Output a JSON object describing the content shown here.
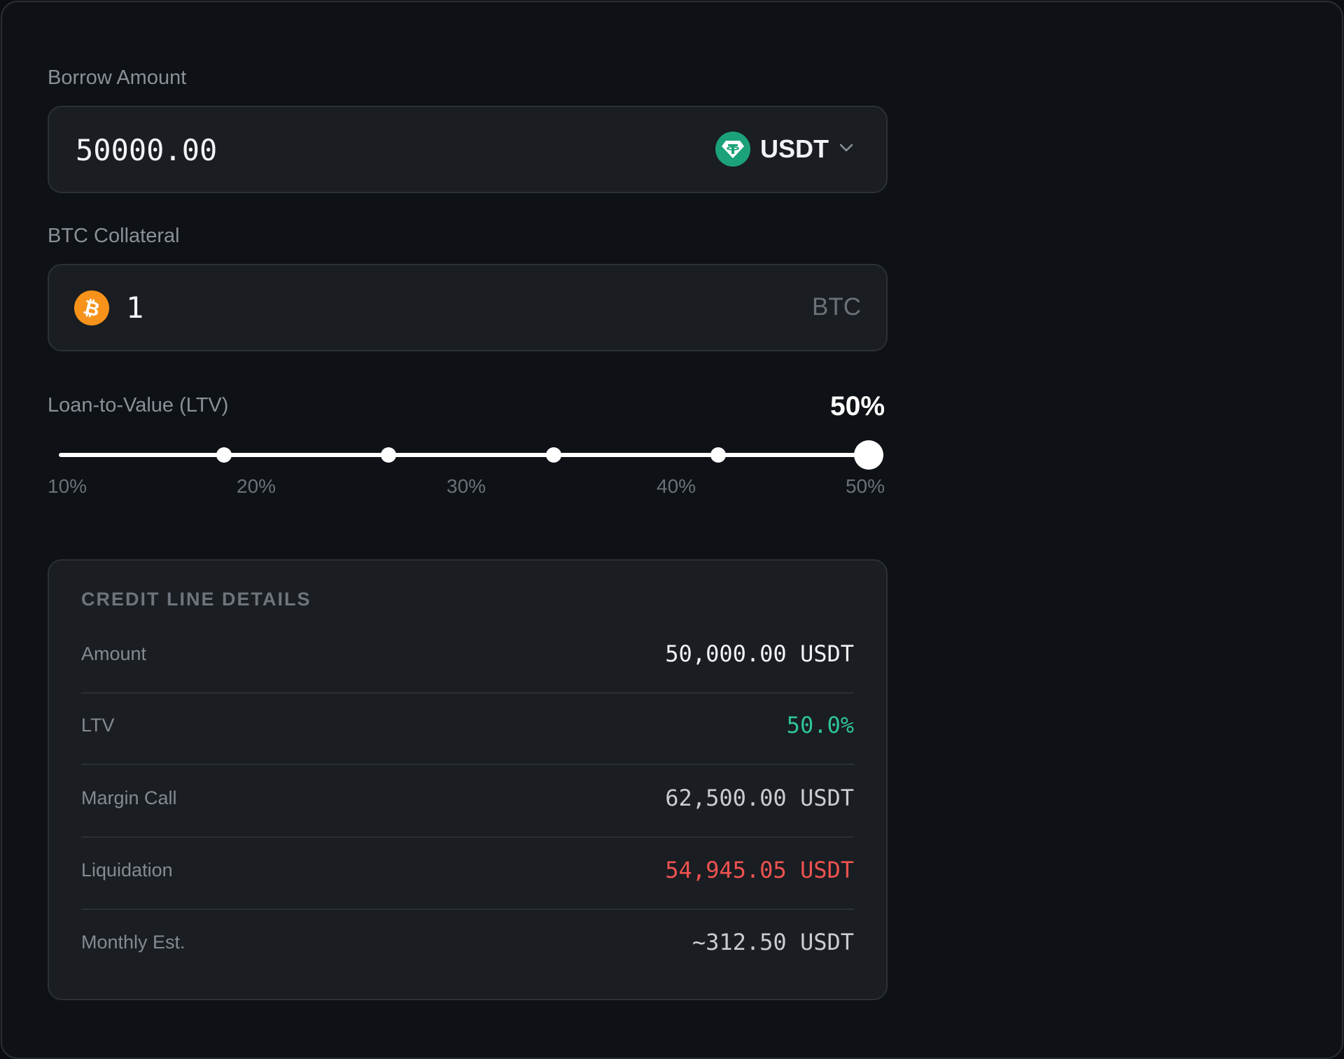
{
  "borrow": {
    "label": "Borrow Amount",
    "value": "50000.00",
    "token": "USDT",
    "token_icon": "tether-icon",
    "token_color": "#1ba27a"
  },
  "collateral": {
    "label": "BTC Collateral",
    "value": "1",
    "unit": "BTC",
    "icon": "bitcoin-icon",
    "icon_color": "#f7931a"
  },
  "ltv": {
    "label": "Loan-to-Value (LTV)",
    "value_text": "50%",
    "min": 10,
    "max": 50,
    "current": 50,
    "steps": [
      10,
      18,
      26,
      34,
      42,
      50
    ],
    "ticks": [
      "10%",
      "20%",
      "30%",
      "40%",
      "50%"
    ]
  },
  "details": {
    "title": "CREDIT LINE DETAILS",
    "rows": [
      {
        "label": "Amount",
        "value": "50,000.00 USDT",
        "color": "#f2f3f5"
      },
      {
        "label": "LTV",
        "value": "50.0%",
        "color": "#2fc39a"
      },
      {
        "label": "Margin Call",
        "value": "62,500.00 USDT",
        "color": "#c9ccd1"
      },
      {
        "label": "Liquidation",
        "value": "54,945.05 USDT",
        "color": "#ef5350"
      },
      {
        "label": "Monthly Est.",
        "value": "~312.50 USDT",
        "color": "#c9ccd1"
      }
    ]
  }
}
